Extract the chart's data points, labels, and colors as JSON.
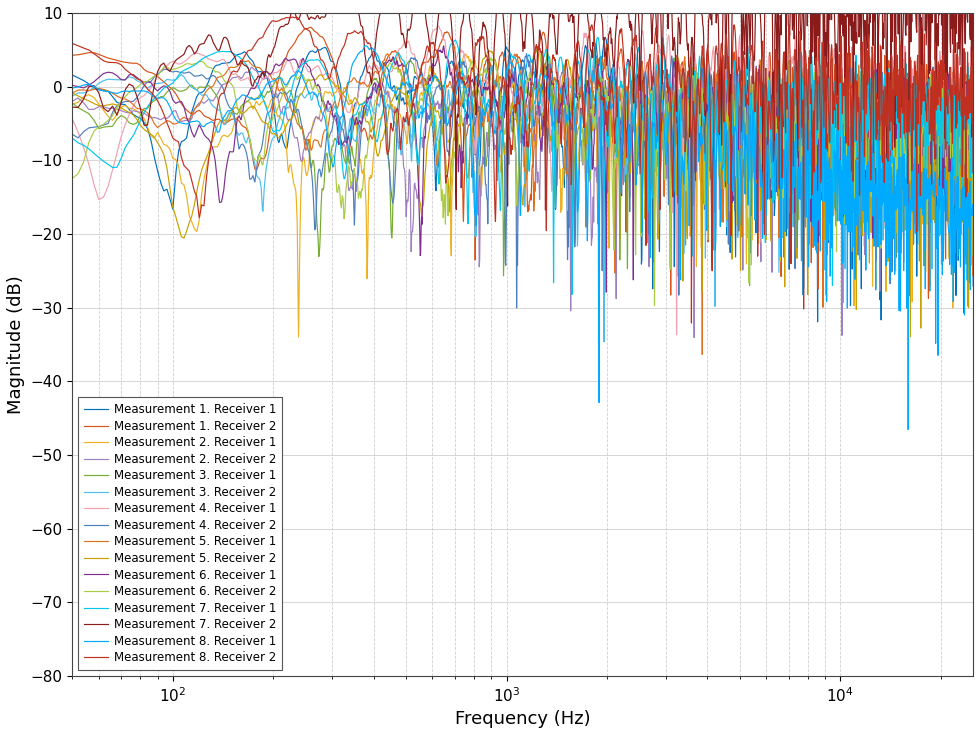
{
  "xlabel": "Frequency (Hz)",
  "ylabel": "Magnitude (dB)",
  "xlim": [
    50,
    25000
  ],
  "ylim": [
    -80,
    10
  ],
  "yticks": [
    10,
    0,
    -10,
    -20,
    -30,
    -40,
    -50,
    -60,
    -70,
    -80
  ],
  "legend_labels": [
    "Measurement 1. Receiver 1",
    "Measurement 1. Receiver 2",
    "Measurement 2. Receiver 1",
    "Measurement 2. Receiver 2",
    "Measurement 3. Receiver 1",
    "Measurement 3. Receiver 2",
    "Measurement 4. Receiver 1",
    "Measurement 4. Receiver 2",
    "Measurement 5. Receiver 1",
    "Measurement 5. Receiver 2",
    "Measurement 6. Receiver 1",
    "Measurement 6. Receiver 2",
    "Measurement 7. Receiver 1",
    "Measurement 7. Receiver 2",
    "Measurement 8. Receiver 1",
    "Measurement 8. Receiver 2"
  ],
  "line_colors": [
    "#0072BD",
    "#D95319",
    "#EDB120",
    "#9E7FBF",
    "#77AC30",
    "#4DBEEE",
    "#F0A0B0",
    "#4D7FBF",
    "#E07020",
    "#C8A000",
    "#7E2F8E",
    "#AACC44",
    "#00C8EE",
    "#8B1A1A",
    "#00AAFF",
    "#C03020"
  ],
  "background_color": "#ffffff",
  "legend_fontsize": 8.5,
  "axis_label_fontsize": 13,
  "tick_fontsize": 11
}
